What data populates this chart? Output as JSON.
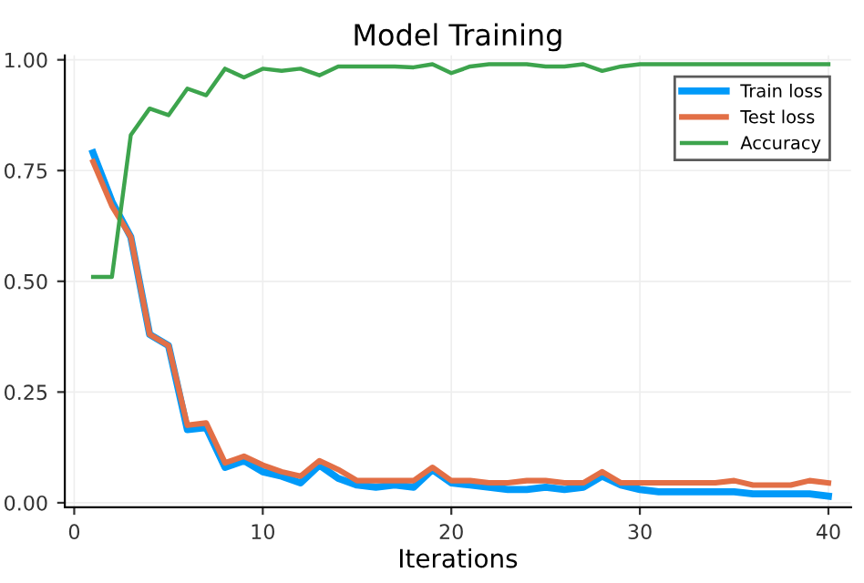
{
  "chart_data": {
    "type": "line",
    "title": "Model Training",
    "xlabel": "Iterations",
    "x": [
      1,
      2,
      3,
      4,
      5,
      6,
      7,
      8,
      9,
      10,
      11,
      12,
      13,
      14,
      15,
      16,
      17,
      18,
      19,
      20,
      21,
      22,
      23,
      24,
      25,
      26,
      27,
      28,
      29,
      30,
      31,
      32,
      33,
      34,
      35,
      36,
      37,
      38,
      39,
      40
    ],
    "series": [
      {
        "name": "Train loss",
        "color": "#009af9",
        "values": [
          0.79,
          0.68,
          0.6,
          0.38,
          0.355,
          0.165,
          0.17,
          0.08,
          0.095,
          0.07,
          0.06,
          0.045,
          0.085,
          0.055,
          0.04,
          0.035,
          0.04,
          0.035,
          0.075,
          0.045,
          0.04,
          0.035,
          0.03,
          0.03,
          0.035,
          0.03,
          0.035,
          0.06,
          0.04,
          0.03,
          0.025,
          0.025,
          0.025,
          0.025,
          0.025,
          0.02,
          0.02,
          0.02,
          0.02,
          0.015
        ]
      },
      {
        "name": "Test loss",
        "color": "#e26f46",
        "values": [
          0.77,
          0.67,
          0.6,
          0.38,
          0.355,
          0.175,
          0.18,
          0.09,
          0.105,
          0.085,
          0.07,
          0.06,
          0.095,
          0.075,
          0.05,
          0.05,
          0.05,
          0.05,
          0.08,
          0.05,
          0.05,
          0.045,
          0.045,
          0.05,
          0.05,
          0.045,
          0.045,
          0.07,
          0.045,
          0.045,
          0.045,
          0.045,
          0.045,
          0.045,
          0.05,
          0.04,
          0.04,
          0.04,
          0.05,
          0.045
        ]
      },
      {
        "name": "Accuracy",
        "color": "#3da44d",
        "values": [
          0.51,
          0.51,
          0.83,
          0.89,
          0.875,
          0.935,
          0.92,
          0.98,
          0.96,
          0.98,
          0.975,
          0.98,
          0.965,
          0.985,
          0.985,
          0.985,
          0.985,
          0.983,
          0.99,
          0.97,
          0.985,
          0.99,
          0.99,
          0.99,
          0.985,
          0.985,
          0.99,
          0.975,
          0.985,
          0.99,
          0.99,
          0.99,
          0.99,
          0.99,
          0.99,
          0.99,
          0.99,
          0.99,
          0.99,
          0.99
        ]
      }
    ],
    "xlim": [
      -0.5,
      41.2
    ],
    "ylim": [
      -0.01,
      1.01
    ],
    "xticks": [
      0,
      10,
      20,
      30,
      40
    ],
    "yticks": [
      {
        "value": 0,
        "label": "0.00"
      },
      {
        "value": 0.25,
        "label": "0.25"
      },
      {
        "value": 0.5,
        "label": "0.50"
      },
      {
        "value": 0.75,
        "label": "0.75"
      },
      {
        "value": 1,
        "label": "1.00"
      }
    ],
    "grid": true,
    "legend": "top right",
    "marker": "none",
    "line_style": "solid"
  }
}
